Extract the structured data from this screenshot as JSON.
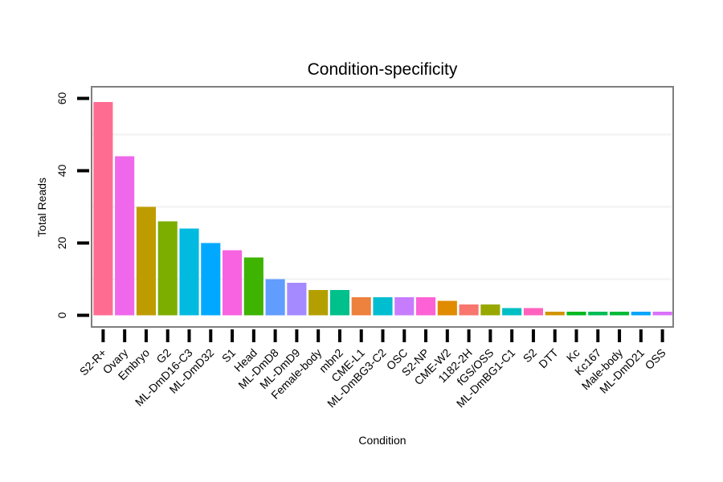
{
  "chart_data": {
    "type": "bar",
    "title": "Condition-specificity",
    "xlabel": "Condition",
    "ylabel": "Total Reads",
    "ylim": [
      -3,
      63
    ],
    "yticks": [
      0,
      20,
      40,
      60
    ],
    "grid": true,
    "categories": [
      "S2-R+",
      "Ovary",
      "Embryo",
      "G2",
      "ML-DmD16-C3",
      "ML-DmD32",
      "S1",
      "Head",
      "ML-DmD8",
      "ML-DmD9",
      "Female-body",
      "mbn2",
      "CME-L1",
      "ML-DmBG3-C2",
      "OSC",
      "S2-NP",
      "CME-W2",
      "1182-2H",
      "fGS/OSS",
      "ML-DmBG1-C1",
      "S2",
      "DTT",
      "Kc",
      "Kc167",
      "Male-body",
      "ML-DmD21",
      "OSS"
    ],
    "values": [
      59,
      44,
      30,
      26,
      24,
      20,
      18,
      16,
      10,
      9,
      7,
      7,
      5,
      5,
      5,
      5,
      4,
      3,
      3,
      2,
      2,
      1,
      1,
      1,
      1,
      1,
      1
    ],
    "colors": [
      "#FF6C91",
      "#EF67EB",
      "#BE9C00",
      "#7CAE00",
      "#00BAE0",
      "#00A9FF",
      "#F763E0",
      "#3EB300",
      "#619CFF",
      "#A58AFF",
      "#B3A000",
      "#00C08B",
      "#ED813E",
      "#00BDD0",
      "#C77CFF",
      "#FC61D5",
      "#E08B00",
      "#F8766D",
      "#99A800",
      "#00BFC4",
      "#FF62BC",
      "#D09400",
      "#00B81F",
      "#00BC56",
      "#00BA38",
      "#00A5FF",
      "#DA71F9"
    ]
  }
}
